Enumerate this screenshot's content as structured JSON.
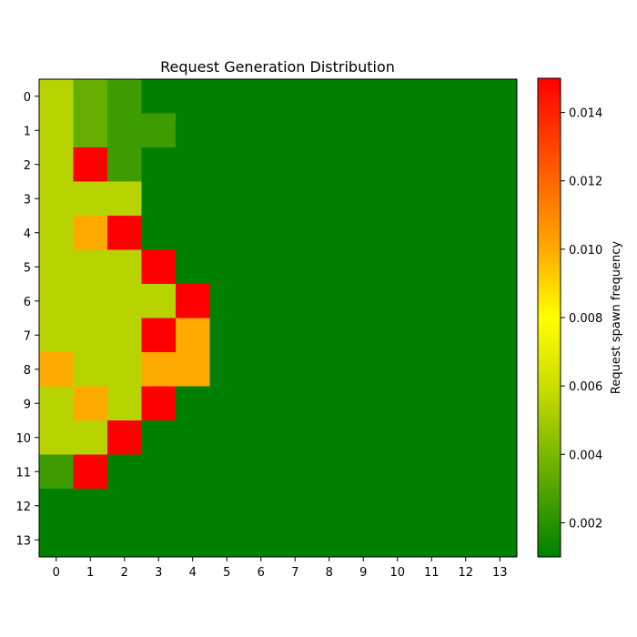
{
  "chart_data": {
    "type": "heatmap",
    "title": "Request Generation Distribution",
    "xlabel": "",
    "ylabel": "",
    "x_ticks": [
      "0",
      "1",
      "2",
      "3",
      "4",
      "5",
      "6",
      "7",
      "8",
      "9",
      "10",
      "11",
      "12",
      "13"
    ],
    "y_ticks": [
      "0",
      "1",
      "2",
      "3",
      "4",
      "5",
      "6",
      "7",
      "8",
      "9",
      "10",
      "11",
      "12",
      "13"
    ],
    "values": [
      [
        0.0055,
        0.0035,
        0.0025,
        0.001,
        0.001,
        0.001,
        0.001,
        0.001,
        0.001,
        0.001,
        0.001,
        0.001,
        0.001,
        0.001
      ],
      [
        0.0055,
        0.0035,
        0.0025,
        0.0025,
        0.001,
        0.001,
        0.001,
        0.001,
        0.001,
        0.001,
        0.001,
        0.001,
        0.001,
        0.001
      ],
      [
        0.0055,
        0.015,
        0.0025,
        0.001,
        0.001,
        0.001,
        0.001,
        0.001,
        0.001,
        0.001,
        0.001,
        0.001,
        0.001,
        0.001
      ],
      [
        0.0055,
        0.0055,
        0.0055,
        0.001,
        0.001,
        0.001,
        0.001,
        0.001,
        0.001,
        0.001,
        0.001,
        0.001,
        0.001,
        0.001
      ],
      [
        0.0055,
        0.01,
        0.015,
        0.001,
        0.001,
        0.001,
        0.001,
        0.001,
        0.001,
        0.001,
        0.001,
        0.001,
        0.001,
        0.001
      ],
      [
        0.0055,
        0.0055,
        0.0055,
        0.015,
        0.001,
        0.001,
        0.001,
        0.001,
        0.001,
        0.001,
        0.001,
        0.001,
        0.001,
        0.001
      ],
      [
        0.0055,
        0.0055,
        0.0055,
        0.0055,
        0.015,
        0.001,
        0.001,
        0.001,
        0.001,
        0.001,
        0.001,
        0.001,
        0.001,
        0.001
      ],
      [
        0.0055,
        0.0055,
        0.0055,
        0.015,
        0.01,
        0.001,
        0.001,
        0.001,
        0.001,
        0.001,
        0.001,
        0.001,
        0.001,
        0.001
      ],
      [
        0.01,
        0.0055,
        0.0055,
        0.01,
        0.01,
        0.001,
        0.001,
        0.001,
        0.001,
        0.001,
        0.001,
        0.001,
        0.001,
        0.001
      ],
      [
        0.0055,
        0.01,
        0.0055,
        0.015,
        0.001,
        0.001,
        0.001,
        0.001,
        0.001,
        0.001,
        0.001,
        0.001,
        0.001,
        0.001
      ],
      [
        0.0055,
        0.0055,
        0.015,
        0.001,
        0.001,
        0.001,
        0.001,
        0.001,
        0.001,
        0.001,
        0.001,
        0.001,
        0.001,
        0.001
      ],
      [
        0.0025,
        0.015,
        0.001,
        0.001,
        0.001,
        0.001,
        0.001,
        0.001,
        0.001,
        0.001,
        0.001,
        0.001,
        0.001,
        0.001
      ],
      [
        0.001,
        0.001,
        0.001,
        0.001,
        0.001,
        0.001,
        0.001,
        0.001,
        0.001,
        0.001,
        0.001,
        0.001,
        0.001,
        0.001
      ],
      [
        0.001,
        0.001,
        0.001,
        0.001,
        0.001,
        0.001,
        0.001,
        0.001,
        0.001,
        0.001,
        0.001,
        0.001,
        0.001,
        0.001
      ]
    ],
    "colorbar": {
      "label": "Request spawn frequency",
      "range": [
        0.001,
        0.015
      ],
      "ticks": [
        0.002,
        0.004,
        0.006,
        0.008,
        0.01,
        0.012,
        0.014
      ],
      "tick_labels": [
        "0.002",
        "0.004",
        "0.006",
        "0.008",
        "0.010",
        "0.012",
        "0.014"
      ],
      "colormap": [
        {
          "value": 0.001,
          "color": "#008000"
        },
        {
          "value": 0.006,
          "color": "#ccdd00"
        },
        {
          "value": 0.008,
          "color": "#ffff00"
        },
        {
          "value": 0.01,
          "color": "#ffaa00"
        },
        {
          "value": 0.015,
          "color": "#ff0000"
        }
      ]
    },
    "grid": false,
    "legend": "colorbar-right"
  }
}
